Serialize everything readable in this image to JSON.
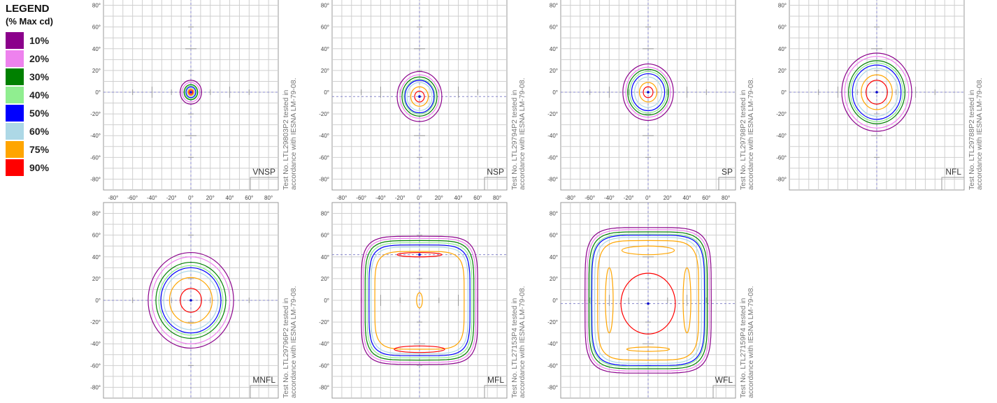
{
  "legend": {
    "title": "LEGEND",
    "subtitle": "(% Max cd)",
    "items": [
      {
        "label": "10%",
        "color": "#8b008b"
      },
      {
        "label": "20%",
        "color": "#ee82ee"
      },
      {
        "label": "30%",
        "color": "#008000"
      },
      {
        "label": "40%",
        "color": "#90ee90"
      },
      {
        "label": "50%",
        "color": "#0000ff"
      },
      {
        "label": "60%",
        "color": "#add8e6"
      },
      {
        "label": "75%",
        "color": "#ffa500"
      },
      {
        "label": "90%",
        "color": "#ff0000"
      }
    ]
  },
  "axis": {
    "x_ticks": [
      "-80°",
      "-60°",
      "-40°",
      "-20°",
      "0°",
      "20°",
      "40°",
      "60°",
      "80°"
    ],
    "y_ticks": [
      "80°",
      "60°",
      "40°",
      "20°",
      "0°",
      "-20°",
      "-40°",
      "-60°",
      "-80°"
    ],
    "range": [
      -90,
      90
    ],
    "grid": true
  },
  "chart_data": [
    {
      "type": "contour",
      "beam": "VNSP",
      "test_note": "Test No. LTL29803P2 tested in accordance with IESNA LM-79-08.",
      "center": [
        0,
        0
      ],
      "shape": "circle",
      "levels": [
        {
          "pct": 10,
          "rx": 11,
          "ry": 11
        },
        {
          "pct": 20,
          "rx": 9,
          "ry": 9
        },
        {
          "pct": 30,
          "rx": 7,
          "ry": 7
        },
        {
          "pct": 40,
          "rx": 6,
          "ry": 6
        },
        {
          "pct": 50,
          "rx": 5,
          "ry": 5
        },
        {
          "pct": 60,
          "rx": 4,
          "ry": 4
        },
        {
          "pct": 75,
          "rx": 3,
          "ry": 3
        },
        {
          "pct": 90,
          "rx": 2,
          "ry": 2
        }
      ]
    },
    {
      "type": "contour",
      "beam": "NSP",
      "test_note": "Test No. LTL29794P2 tested in accordance with IESNA LM-79-08.",
      "center": [
        0,
        -4
      ],
      "shape": "circle",
      "levels": [
        {
          "pct": 10,
          "rx": 23,
          "ry": 23
        },
        {
          "pct": 20,
          "rx": 20,
          "ry": 20
        },
        {
          "pct": 30,
          "rx": 18,
          "ry": 18
        },
        {
          "pct": 40,
          "rx": 16,
          "ry": 16
        },
        {
          "pct": 50,
          "rx": 15,
          "ry": 15
        },
        {
          "pct": 60,
          "rx": 13,
          "ry": 13
        },
        {
          "pct": 75,
          "rx": 9,
          "ry": 9
        },
        {
          "pct": 90,
          "rx": 5,
          "ry": 5
        }
      ]
    },
    {
      "type": "contour",
      "beam": "SP",
      "test_note": "Test No. LTL29798P2 tested in accordance with IESNA LM-79-08.",
      "center": [
        0,
        0
      ],
      "shape": "circle",
      "levels": [
        {
          "pct": 10,
          "rx": 26,
          "ry": 26
        },
        {
          "pct": 20,
          "rx": 23,
          "ry": 23
        },
        {
          "pct": 30,
          "rx": 21,
          "ry": 21
        },
        {
          "pct": 40,
          "rx": 19,
          "ry": 19
        },
        {
          "pct": 50,
          "rx": 17,
          "ry": 17
        },
        {
          "pct": 60,
          "rx": 14,
          "ry": 14
        },
        {
          "pct": 75,
          "rx": 9,
          "ry": 9
        },
        {
          "pct": 90,
          "rx": 5,
          "ry": 5
        }
      ]
    },
    {
      "type": "contour",
      "beam": "NFL",
      "test_note": "Test No. LTL29788P2 tested in accordance with IESNA LM-79-08.",
      "center": [
        0,
        0
      ],
      "shape": "circle",
      "levels": [
        {
          "pct": 10,
          "rx": 36,
          "ry": 36
        },
        {
          "pct": 20,
          "rx": 33,
          "ry": 33
        },
        {
          "pct": 30,
          "rx": 29,
          "ry": 29
        },
        {
          "pct": 40,
          "rx": 27,
          "ry": 27
        },
        {
          "pct": 50,
          "rx": 25,
          "ry": 25
        },
        {
          "pct": 60,
          "rx": 22,
          "ry": 22
        },
        {
          "pct": 75,
          "rx": 16,
          "ry": 16
        },
        {
          "pct": 90,
          "rx": 11,
          "ry": 11
        }
      ]
    },
    {
      "type": "contour",
      "beam": "MNFL",
      "test_note": "Test No. LTL29796P2 tested in accordance with IESNA LM-79-08.",
      "center": [
        0,
        0
      ],
      "shape": "circle",
      "levels": [
        {
          "pct": 10,
          "rx": 44,
          "ry": 44
        },
        {
          "pct": 20,
          "rx": 40,
          "ry": 40
        },
        {
          "pct": 30,
          "rx": 36,
          "ry": 35
        },
        {
          "pct": 40,
          "rx": 33,
          "ry": 32
        },
        {
          "pct": 50,
          "rx": 31,
          "ry": 30
        },
        {
          "pct": 60,
          "rx": 28,
          "ry": 27
        },
        {
          "pct": 75,
          "rx": 22,
          "ry": 21
        },
        {
          "pct": 90,
          "rx": 11,
          "ry": 11
        }
      ]
    },
    {
      "type": "contour",
      "beam": "MFL",
      "test_note": "Test No. LTL27153P4 tested in accordance with IESNA LM-79-08.",
      "center": [
        0,
        0
      ],
      "shape": "squircle",
      "levels": [
        {
          "pct": 10,
          "rx": 60,
          "ry": 59
        },
        {
          "pct": 20,
          "rx": 58,
          "ry": 57
        },
        {
          "pct": 30,
          "rx": 56,
          "ry": 55
        },
        {
          "pct": 40,
          "rx": 54,
          "ry": 53
        },
        {
          "pct": 50,
          "rx": 52,
          "ry": 51
        },
        {
          "pct": 60,
          "rx": 50,
          "ry": 49
        },
        {
          "pct": 75,
          "rx": 46,
          "ry": 45
        }
      ],
      "extras": [
        {
          "pct": 90,
          "cx": 0,
          "cy": 42,
          "rx": 23,
          "ry": 2
        },
        {
          "pct": 90,
          "cx": 0,
          "cy": -45,
          "rx": 26,
          "ry": 3
        },
        {
          "pct": 75,
          "cx": 0,
          "cy": 0,
          "rx": 3,
          "ry": 7
        }
      ],
      "peak": [
        0,
        42
      ]
    },
    {
      "type": "contour",
      "beam": "WFL",
      "test_note": "Test No. LTL27159P4 tested in accordance with IESNA LM-79-08.",
      "center": [
        0,
        0
      ],
      "shape": "squircle",
      "levels": [
        {
          "pct": 10,
          "rx": 65,
          "ry": 67
        },
        {
          "pct": 20,
          "rx": 63,
          "ry": 65
        },
        {
          "pct": 30,
          "rx": 61,
          "ry": 63
        },
        {
          "pct": 40,
          "rx": 59,
          "ry": 61
        },
        {
          "pct": 50,
          "rx": 58,
          "ry": 60
        },
        {
          "pct": 60,
          "rx": 55,
          "ry": 58
        },
        {
          "pct": 75,
          "rx": 52,
          "ry": 55
        }
      ],
      "extras": [
        {
          "pct": 90,
          "cx": 0,
          "cy": -3,
          "rx": 28,
          "ry": 28
        },
        {
          "pct": 75,
          "cx": 0,
          "cy": 46,
          "rx": 27,
          "ry": 4
        },
        {
          "pct": 75,
          "cx": -40,
          "cy": 0,
          "rx": 4,
          "ry": 30
        },
        {
          "pct": 75,
          "cx": 40,
          "cy": 0,
          "rx": 4,
          "ry": 30
        },
        {
          "pct": 75,
          "cx": 0,
          "cy": -45,
          "rx": 22,
          "ry": 2
        }
      ],
      "peak": [
        0,
        -3
      ]
    }
  ]
}
